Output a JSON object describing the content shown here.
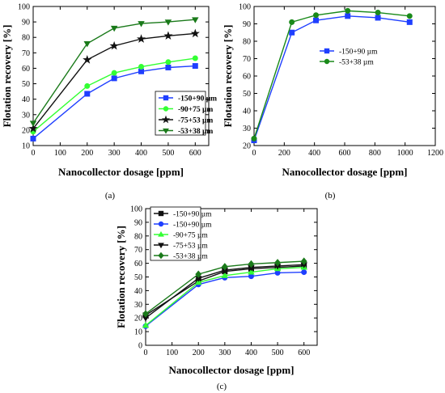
{
  "chart_data": [
    {
      "type": "line",
      "caption": "(a)",
      "xlabel": "Nanocollector dosage [ppm]",
      "ylabel": "Flotation recovery [%]",
      "xlim": [
        0,
        650
      ],
      "ylim": [
        10,
        100
      ],
      "xticks": [
        0,
        100,
        200,
        300,
        400,
        500,
        600
      ],
      "yticks": [
        10,
        20,
        30,
        40,
        50,
        60,
        70,
        80,
        90,
        100
      ],
      "grid": false,
      "legend_position": "bottom-right",
      "x": [
        0,
        200,
        300,
        400,
        500,
        600
      ],
      "series": [
        {
          "name": "-150+90 µm",
          "color": "#1f3fff",
          "marker": "square",
          "values": [
            14.5,
            43.5,
            53.5,
            58,
            60.5,
            61.5
          ]
        },
        {
          "name": "-90+75 µm",
          "color": "#33ff33",
          "marker": "circle",
          "values": [
            19,
            48.5,
            57,
            61,
            64,
            66.5
          ]
        },
        {
          "name": "-75+53 µm",
          "color": "#111111",
          "marker": "star",
          "values": [
            21,
            65.5,
            74.5,
            79,
            81,
            82.5
          ]
        },
        {
          "name": "-53+38 µm",
          "color": "#1a7a1a",
          "marker": "triangle-down",
          "values": [
            24.5,
            76,
            86,
            89,
            90,
            91.5
          ]
        }
      ]
    },
    {
      "type": "line",
      "caption": "(b)",
      "xlabel": "Nanocollector dosage [ppm]",
      "ylabel": "Flotation recovery [%]",
      "xlim": [
        0,
        1200
      ],
      "ylim": [
        20,
        100
      ],
      "xticks": [
        0,
        200,
        400,
        600,
        800,
        1000,
        1200
      ],
      "yticks": [
        20,
        30,
        40,
        50,
        60,
        70,
        80,
        90,
        100
      ],
      "grid": false,
      "legend_position": "center-left",
      "series": [
        {
          "name": "-150+90 µm",
          "color": "#1f3fff",
          "marker": "square",
          "x": [
            0,
            250,
            410,
            620,
            820,
            1030
          ],
          "values": [
            23,
            85,
            92,
            94.5,
            93.5,
            91
          ]
        },
        {
          "name": "-53+38 µm",
          "color": "#1a8a1a",
          "marker": "circle",
          "x": [
            0,
            250,
            410,
            620,
            820,
            1030
          ],
          "values": [
            24,
            91,
            95,
            97.5,
            96.5,
            94.5
          ]
        }
      ]
    },
    {
      "type": "line",
      "caption": "(c)",
      "xlabel": "Nanocollector dosage [ppm]",
      "ylabel": "Flotation recovery [%]",
      "xlim": [
        0,
        650
      ],
      "ylim": [
        0,
        100
      ],
      "xticks": [
        0,
        100,
        200,
        300,
        400,
        500,
        600
      ],
      "yticks": [
        0,
        10,
        20,
        30,
        40,
        50,
        60,
        70,
        80,
        90,
        100
      ],
      "grid": false,
      "legend_position": "top-left",
      "x": [
        0,
        200,
        300,
        400,
        500,
        600
      ],
      "series": [
        {
          "name": "-150+90 µm",
          "color": "#111111",
          "marker": "square",
          "values": [
            22,
            47,
            54,
            56,
            57,
            58
          ]
        },
        {
          "name": "-150+90 µm",
          "color": "#1f3fff",
          "marker": "circle",
          "values": [
            14,
            44.5,
            49.5,
            50.5,
            53,
            53.5
          ]
        },
        {
          "name": "-90+75 µm",
          "color": "#33ff33",
          "marker": "triangle-up",
          "values": [
            14.5,
            46,
            51,
            53.5,
            56,
            57
          ]
        },
        {
          "name": "-75+53 µm",
          "color": "#111111",
          "marker": "triangle-down",
          "values": [
            20,
            49,
            55,
            57,
            58,
            59
          ]
        },
        {
          "name": "-53+38 µm",
          "color": "#1a7a1a",
          "marker": "diamond",
          "values": [
            23,
            52,
            57.5,
            59.5,
            60.5,
            61.5
          ]
        }
      ]
    }
  ]
}
